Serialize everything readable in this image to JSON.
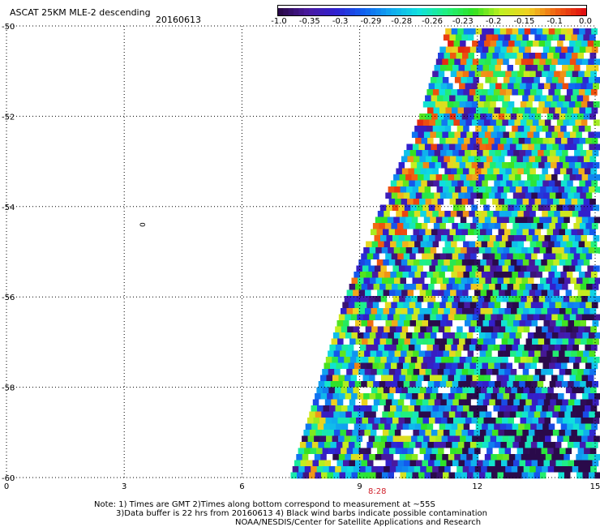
{
  "header": {
    "title": "ASCAT 25KM MLE-2 descending",
    "date": "20160613"
  },
  "colorbar": {
    "tick_labels": [
      "-1.0",
      "-0.35",
      "-0.3",
      "-0.29",
      "-0.28",
      "-0.26",
      "-0.23",
      "-0.2",
      "-0.15",
      "-0.1",
      "0.0"
    ],
    "colors": [
      "#2a0a4a",
      "#4a1aa0",
      "#3020d0",
      "#1060f0",
      "#10a8f0",
      "#10e0e0",
      "#20f080",
      "#30e020",
      "#c0f020",
      "#f0d020",
      "#f06010",
      "#e01010"
    ]
  },
  "map": {
    "lat_labels": [
      "-50",
      "-52",
      "-54",
      "-56",
      "-58",
      "-60"
    ],
    "lon_labels": [
      "0",
      "3",
      "6",
      "9",
      "12",
      "15"
    ],
    "lat_values": [
      -50,
      -52,
      -54,
      -56,
      -58,
      -60
    ],
    "lon_values": [
      0,
      3,
      6,
      9,
      12,
      15
    ],
    "time_label": "8:28",
    "contour_label": "0",
    "swath_edge": [
      [
        11.2,
        -50.0
      ],
      [
        10.5,
        -52.0
      ],
      [
        9.5,
        -54.0
      ],
      [
        8.6,
        -56.0
      ],
      [
        7.9,
        -58.0
      ],
      [
        7.2,
        -60.0
      ]
    ]
  },
  "notes": {
    "line1": "Note: 1) Times are GMT 2)Times along bottom correspond to measurement at ~55S",
    "line2": "3)Data buffer is 22 hrs from 20160613 4) Black wind barbs indicate possible contamination",
    "line3": "NOAA/NESDIS/Center for Satellite Applications and Research"
  }
}
